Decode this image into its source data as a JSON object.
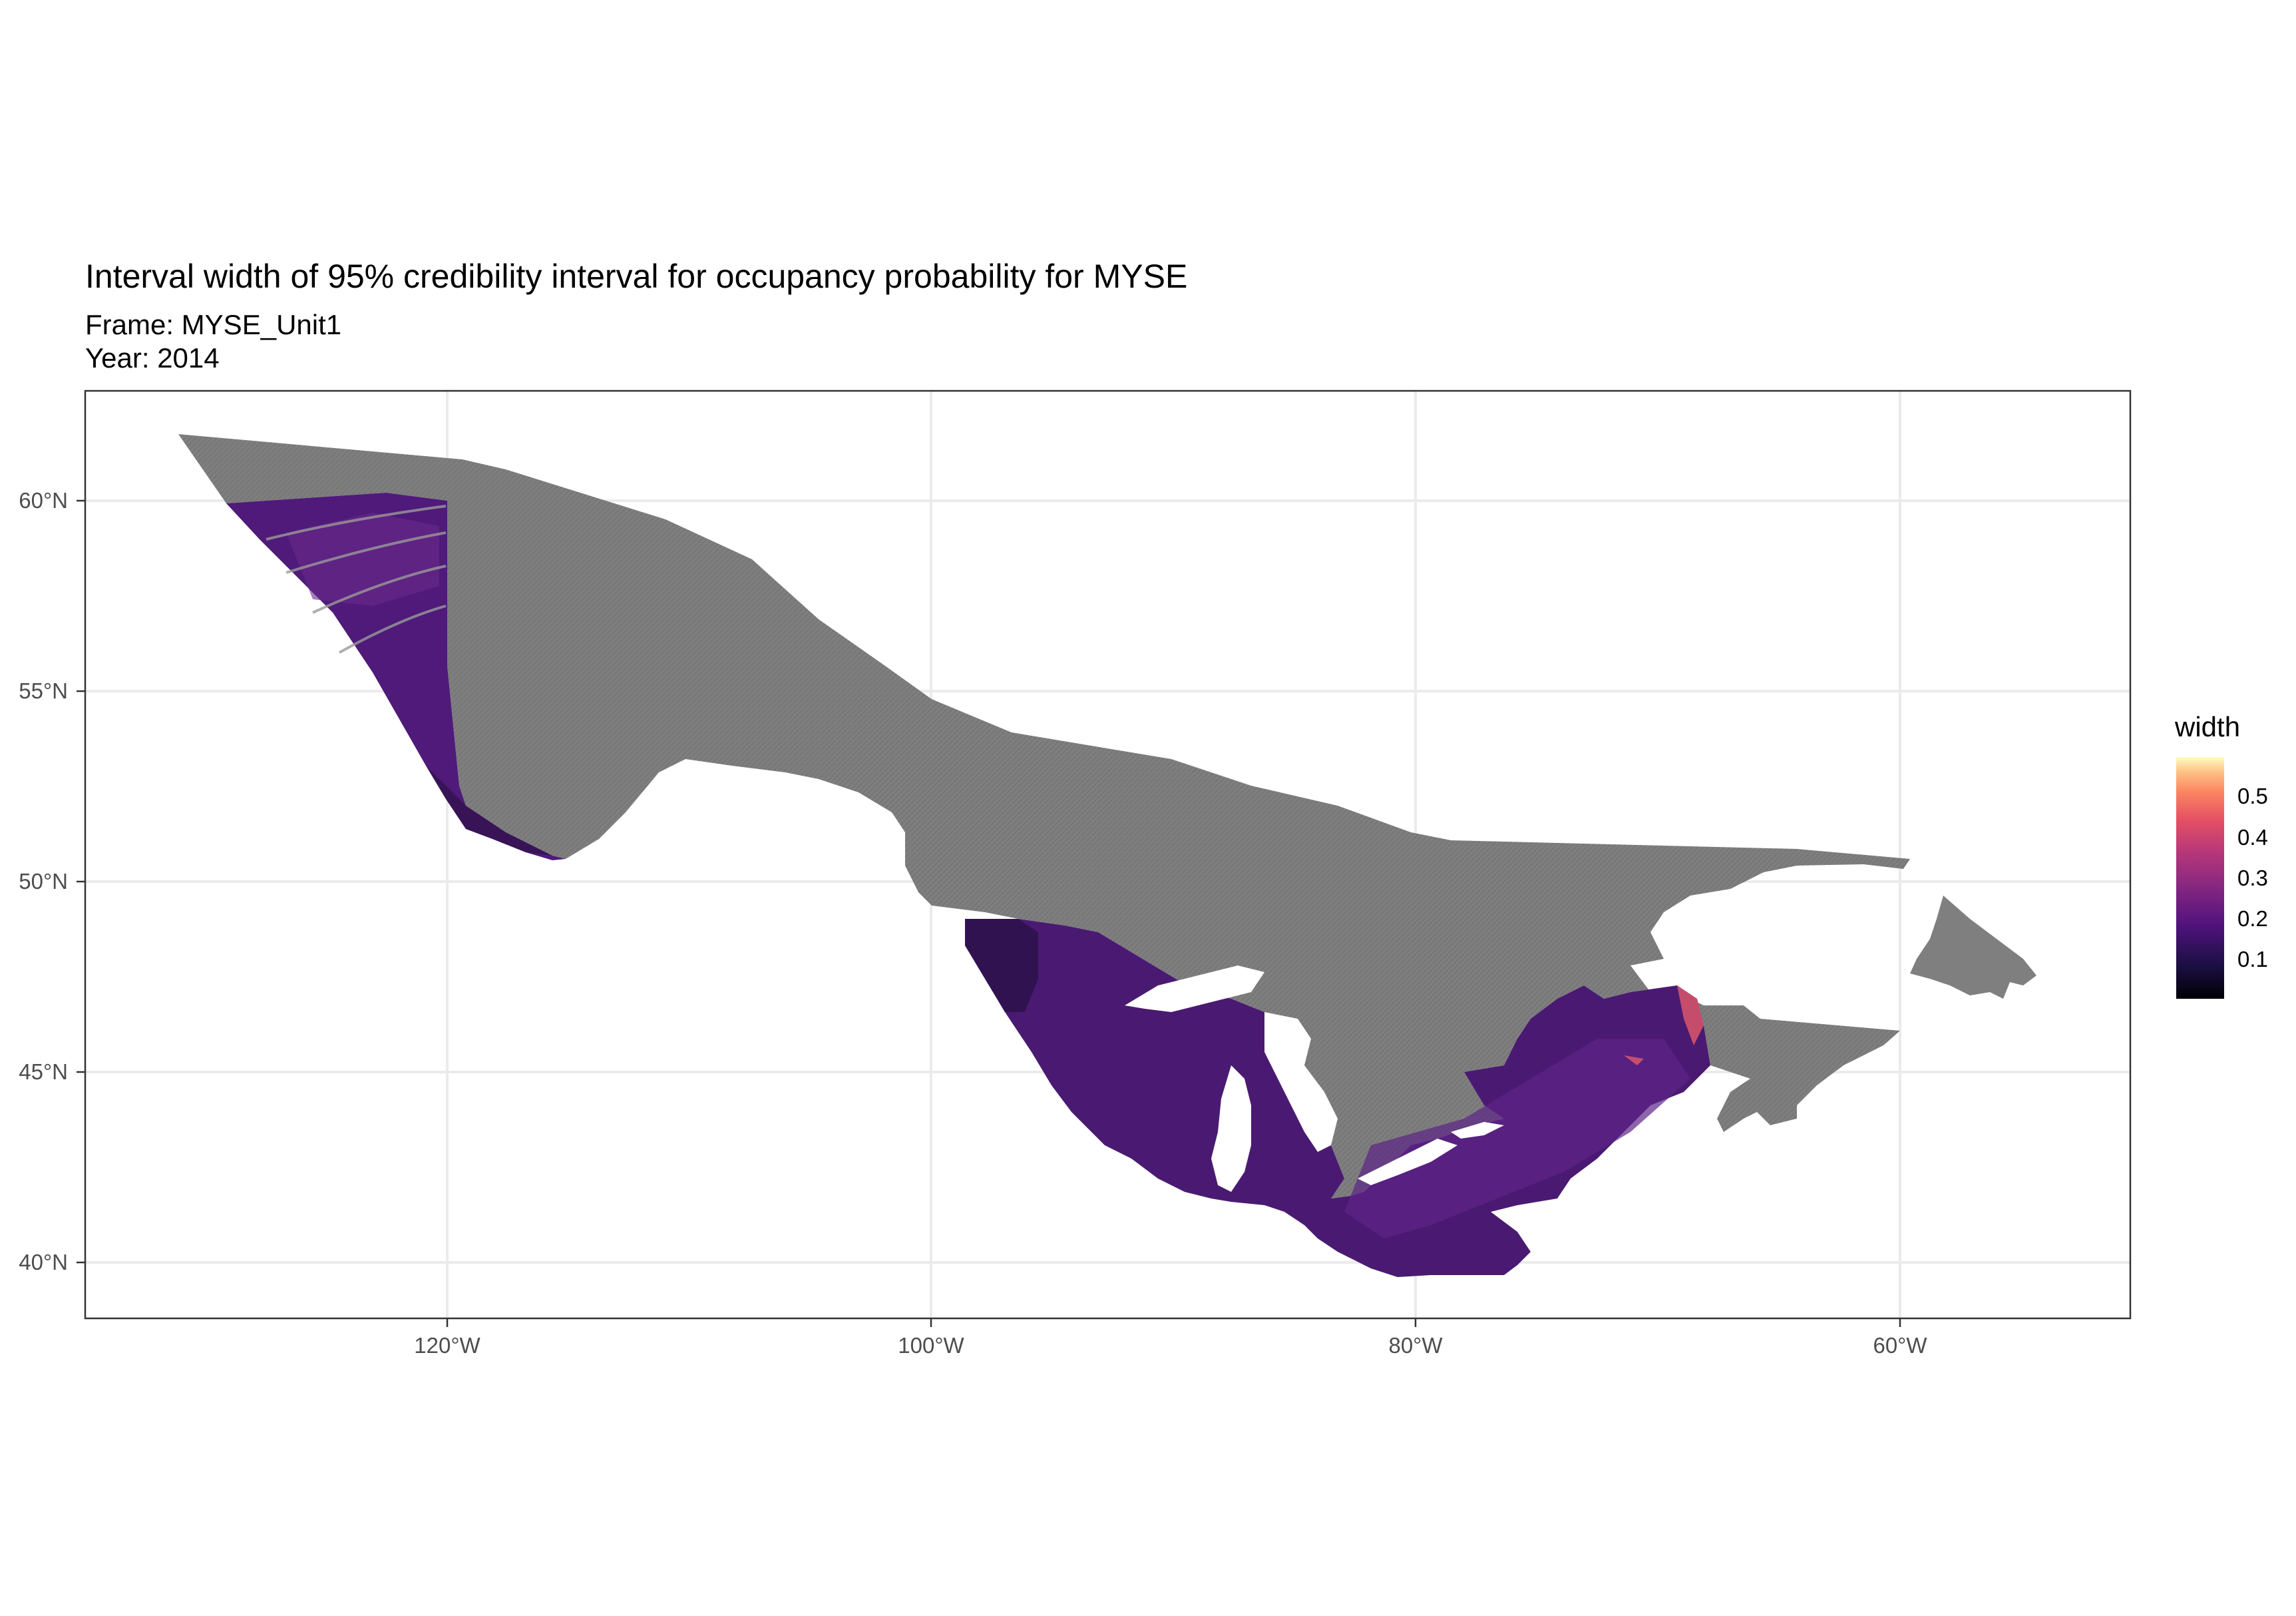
{
  "title": "Interval width of 95% credibility interval for occupancy probability for MYSE",
  "subtitle_frame": "Frame: MYSE_Unit1",
  "subtitle_year": "Year: 2014",
  "legend": {
    "title": "width",
    "labels": [
      "0.5",
      "0.4",
      "0.3",
      "0.2",
      "0.1"
    ]
  },
  "axes": {
    "x_ticks": [
      "120°W",
      "100°W",
      "80°W",
      "60°W"
    ],
    "y_ticks": [
      "60°N",
      "55°N",
      "50°N",
      "45°N",
      "40°N"
    ]
  },
  "colors": {
    "no_data_region": "#7f7f7f",
    "low_width": "#000004",
    "high_width": "#fcfdbf",
    "typical_width": "#4f1a7a"
  },
  "chart_data": {
    "type": "heatmap",
    "xlim": [
      -135,
      -50
    ],
    "ylim": [
      38.5,
      62.7
    ],
    "x_ticks_deg": [
      -120,
      -100,
      -80,
      -60
    ],
    "y_ticks_deg": [
      40,
      45,
      50,
      55,
      60
    ],
    "fill_scale": {
      "name": "width",
      "palette": "magma",
      "range": [
        0.02,
        0.58
      ],
      "breaks": [
        0.1,
        0.2,
        0.3,
        0.4,
        0.5
      ]
    },
    "grid": true,
    "legend_position": "right"
  }
}
